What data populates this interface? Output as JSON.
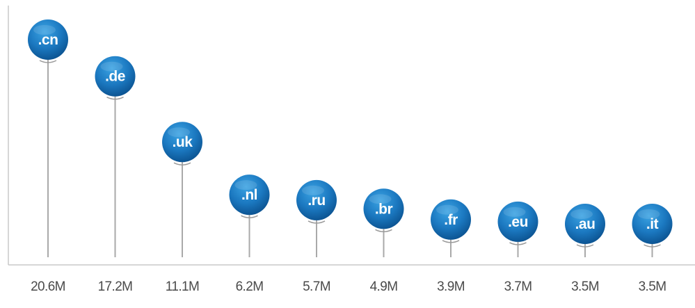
{
  "chart_data": {
    "type": "lollipop",
    "categories": [
      ".cn",
      ".de",
      ".uk",
      ".nl",
      ".ru",
      ".br",
      ".fr",
      ".eu",
      ".au",
      ".it"
    ],
    "values": [
      20.6,
      17.2,
      11.1,
      6.2,
      5.7,
      4.9,
      3.9,
      3.7,
      3.5,
      3.5
    ],
    "value_labels": [
      "20.6M",
      "17.2M",
      "11.1M",
      "6.2M",
      "5.7M",
      "4.9M",
      "3.9M",
      "3.7M",
      "3.5M",
      "3.5M"
    ],
    "unit": "M",
    "ylim": [
      0,
      20.6
    ],
    "grid": false,
    "legend": "none",
    "colors": {
      "pin_light": "#2a93d5",
      "pin_dark": "#0e5fa0",
      "stem": "#a9a9a9",
      "axis": "#c8c8c8",
      "label_text": "#4a4a4a"
    }
  }
}
